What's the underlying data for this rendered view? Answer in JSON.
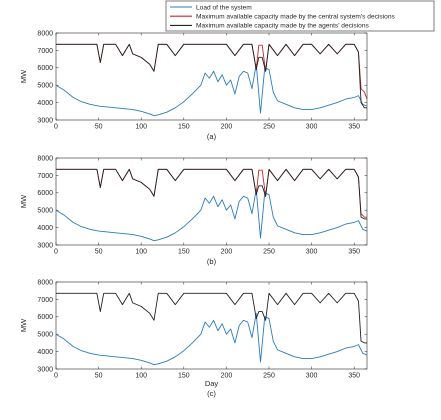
{
  "legend": {
    "items": [
      {
        "label": "Load of the system",
        "color": "#2b7bbf"
      },
      {
        "label": "Maximum available capacity made by the central system's decisions",
        "color": "#c0282d"
      },
      {
        "label": "Maximum available capacity made by the agents' decisions",
        "color": "#222222"
      }
    ]
  },
  "chart_data": [
    {
      "type": "line",
      "subtitle": "(a)",
      "xlabel": "",
      "ylabel": "MW",
      "xlim": [
        0,
        365
      ],
      "ylim": [
        3000,
        8000
      ],
      "xticks": [
        0,
        50,
        100,
        150,
        200,
        250,
        300,
        350
      ],
      "yticks": [
        3000,
        4000,
        5000,
        6000,
        7000,
        8000
      ],
      "series": [
        {
          "name": "Load of the system",
          "color": "#2b7bbf",
          "x": [
            0,
            10,
            20,
            30,
            40,
            50,
            60,
            70,
            80,
            90,
            100,
            110,
            115,
            120,
            130,
            140,
            150,
            160,
            170,
            175,
            180,
            185,
            190,
            195,
            200,
            205,
            210,
            215,
            220,
            225,
            230,
            235,
            240,
            245,
            250,
            255,
            260,
            270,
            280,
            290,
            300,
            310,
            320,
            330,
            340,
            350,
            355,
            360,
            365
          ],
          "y": [
            5000,
            4700,
            4300,
            4050,
            3900,
            3800,
            3750,
            3700,
            3650,
            3600,
            3500,
            3350,
            3250,
            3300,
            3450,
            3700,
            4050,
            4500,
            5000,
            5700,
            5400,
            5800,
            5200,
            5600,
            5000,
            5300,
            4500,
            5500,
            5800,
            5700,
            4800,
            6200,
            3400,
            6000,
            5900,
            4600,
            4100,
            3900,
            3700,
            3600,
            3600,
            3700,
            3850,
            4000,
            4200,
            4300,
            4400,
            3900,
            3800
          ]
        },
        {
          "name": "Maximum available capacity made by the central system's decisions",
          "color": "#c0282d",
          "x": [
            0,
            48,
            52,
            56,
            60,
            70,
            78,
            86,
            90,
            100,
            110,
            115,
            120,
            130,
            140,
            150,
            160,
            170,
            180,
            190,
            200,
            210,
            220,
            230,
            235,
            238,
            242,
            246,
            250,
            260,
            270,
            280,
            290,
            300,
            310,
            320,
            330,
            340,
            350,
            355,
            358,
            362,
            365
          ],
          "y": [
            7350,
            7350,
            6300,
            7350,
            7350,
            7350,
            6700,
            7350,
            6800,
            6600,
            6200,
            5800,
            7350,
            7350,
            6700,
            7350,
            7350,
            7350,
            7350,
            7350,
            7350,
            6700,
            7350,
            7350,
            5900,
            7300,
            7300,
            5800,
            7350,
            6700,
            7350,
            6700,
            7350,
            7350,
            6800,
            7350,
            6800,
            7350,
            7350,
            6900,
            4800,
            4600,
            4200
          ]
        },
        {
          "name": "Maximum available capacity made by the agents' decisions",
          "color": "#222222",
          "x": [
            0,
            48,
            52,
            56,
            60,
            70,
            78,
            86,
            90,
            100,
            110,
            115,
            120,
            130,
            140,
            150,
            160,
            170,
            180,
            190,
            200,
            210,
            220,
            230,
            235,
            238,
            242,
            246,
            250,
            260,
            270,
            280,
            290,
            300,
            310,
            320,
            330,
            340,
            350,
            355,
            358,
            362,
            365
          ],
          "y": [
            7350,
            7350,
            6300,
            7350,
            7350,
            7350,
            6700,
            7350,
            6800,
            6600,
            6200,
            5800,
            7350,
            7350,
            6700,
            7350,
            7350,
            7350,
            7350,
            7350,
            7350,
            6700,
            7350,
            7350,
            5900,
            6600,
            6600,
            5800,
            7350,
            6700,
            7350,
            6700,
            7350,
            7350,
            6800,
            7350,
            6800,
            7350,
            7350,
            6900,
            4000,
            3700,
            3700
          ]
        }
      ]
    },
    {
      "type": "line",
      "subtitle": "(b)",
      "xlabel": "",
      "ylabel": "MW",
      "xlim": [
        0,
        365
      ],
      "ylim": [
        3000,
        8000
      ],
      "xticks": [
        0,
        50,
        100,
        150,
        200,
        250,
        300,
        350
      ],
      "yticks": [
        3000,
        4000,
        5000,
        6000,
        7000,
        8000
      ],
      "series": [
        {
          "name": "Load of the system",
          "color": "#2b7bbf",
          "x": [
            0,
            10,
            20,
            30,
            40,
            50,
            60,
            70,
            80,
            90,
            100,
            110,
            115,
            120,
            130,
            140,
            150,
            160,
            170,
            175,
            180,
            185,
            190,
            195,
            200,
            205,
            210,
            215,
            220,
            225,
            230,
            235,
            240,
            245,
            250,
            255,
            260,
            270,
            280,
            290,
            300,
            310,
            320,
            330,
            340,
            350,
            355,
            360,
            365
          ],
          "y": [
            5000,
            4700,
            4300,
            4050,
            3900,
            3800,
            3750,
            3700,
            3650,
            3600,
            3500,
            3350,
            3250,
            3300,
            3450,
            3700,
            4050,
            4500,
            5000,
            5700,
            5400,
            5800,
            5200,
            5600,
            5000,
            5300,
            4500,
            5500,
            5800,
            5700,
            4800,
            6200,
            3400,
            6000,
            5900,
            4600,
            4100,
            3900,
            3700,
            3600,
            3600,
            3700,
            3850,
            4000,
            4200,
            4300,
            4400,
            3900,
            3800
          ]
        },
        {
          "name": "Maximum available capacity made by the central system's decisions",
          "color": "#c0282d",
          "x": [
            0,
            48,
            52,
            56,
            60,
            70,
            78,
            86,
            90,
            100,
            110,
            115,
            120,
            130,
            140,
            150,
            160,
            170,
            180,
            190,
            200,
            210,
            220,
            230,
            235,
            238,
            242,
            246,
            250,
            260,
            270,
            280,
            290,
            300,
            310,
            320,
            330,
            340,
            350,
            355,
            358,
            362,
            365
          ],
          "y": [
            7350,
            7350,
            6300,
            7350,
            7350,
            7350,
            6700,
            7350,
            6800,
            6600,
            6200,
            5800,
            7350,
            7350,
            6700,
            7350,
            7350,
            7350,
            7350,
            7350,
            7350,
            6700,
            7350,
            7350,
            5900,
            7300,
            7300,
            5800,
            7350,
            6700,
            7350,
            6700,
            7350,
            7350,
            6800,
            7350,
            6800,
            7350,
            7350,
            6900,
            4800,
            4600,
            4600
          ]
        },
        {
          "name": "Maximum available capacity made by the agents' decisions",
          "color": "#222222",
          "x": [
            0,
            48,
            52,
            56,
            60,
            70,
            78,
            86,
            90,
            100,
            110,
            115,
            120,
            130,
            140,
            150,
            160,
            170,
            180,
            190,
            200,
            210,
            220,
            230,
            235,
            238,
            242,
            246,
            250,
            260,
            270,
            280,
            290,
            300,
            310,
            320,
            330,
            340,
            350,
            355,
            358,
            362,
            365
          ],
          "y": [
            7350,
            7350,
            6300,
            7350,
            7350,
            7350,
            6700,
            7350,
            6800,
            6600,
            6200,
            5800,
            7350,
            7350,
            6700,
            7350,
            7350,
            7350,
            7350,
            7350,
            7350,
            6700,
            7350,
            7350,
            5900,
            6400,
            6400,
            5800,
            7350,
            6700,
            7350,
            6700,
            7350,
            7350,
            6800,
            7350,
            6800,
            7350,
            7350,
            6900,
            4600,
            4500,
            4500
          ]
        }
      ]
    },
    {
      "type": "line",
      "subtitle": "(c)",
      "xlabel": "Day",
      "ylabel": "MW",
      "xlim": [
        0,
        365
      ],
      "ylim": [
        3000,
        8000
      ],
      "xticks": [
        0,
        50,
        100,
        150,
        200,
        250,
        300,
        350
      ],
      "yticks": [
        3000,
        4000,
        5000,
        6000,
        7000,
        8000
      ],
      "series": [
        {
          "name": "Load of the system",
          "color": "#2b7bbf",
          "x": [
            0,
            10,
            20,
            30,
            40,
            50,
            60,
            70,
            80,
            90,
            100,
            110,
            115,
            120,
            130,
            140,
            150,
            160,
            170,
            175,
            180,
            185,
            190,
            195,
            200,
            205,
            210,
            215,
            220,
            225,
            230,
            235,
            240,
            245,
            250,
            255,
            260,
            270,
            280,
            290,
            300,
            310,
            320,
            330,
            340,
            350,
            355,
            360,
            365
          ],
          "y": [
            5000,
            4700,
            4300,
            4050,
            3900,
            3800,
            3750,
            3700,
            3650,
            3600,
            3500,
            3350,
            3250,
            3300,
            3450,
            3700,
            4050,
            4500,
            5000,
            5700,
            5400,
            5800,
            5200,
            5600,
            5000,
            5300,
            4500,
            5500,
            5800,
            5700,
            4800,
            6200,
            3400,
            6000,
            5900,
            4600,
            4100,
            3900,
            3700,
            3600,
            3600,
            3700,
            3850,
            4000,
            4200,
            4300,
            4400,
            3900,
            3800
          ]
        },
        {
          "name": "Maximum available capacity made by the agents' decisions",
          "color": "#222222",
          "x": [
            0,
            48,
            52,
            56,
            60,
            70,
            78,
            86,
            90,
            100,
            110,
            115,
            120,
            130,
            140,
            150,
            160,
            170,
            180,
            190,
            200,
            210,
            220,
            230,
            235,
            238,
            242,
            246,
            250,
            260,
            270,
            280,
            290,
            300,
            310,
            320,
            330,
            340,
            350,
            355,
            358,
            362,
            365
          ],
          "y": [
            7350,
            7350,
            6300,
            7350,
            7350,
            7350,
            6700,
            7350,
            6800,
            6600,
            6200,
            5800,
            7350,
            7350,
            6700,
            7350,
            7350,
            7350,
            7350,
            7350,
            7350,
            6700,
            7350,
            7350,
            5900,
            6300,
            6300,
            5800,
            7350,
            6700,
            7350,
            6700,
            7350,
            7350,
            6800,
            7350,
            6800,
            7350,
            7350,
            6900,
            4600,
            4500,
            4500
          ]
        }
      ]
    }
  ]
}
